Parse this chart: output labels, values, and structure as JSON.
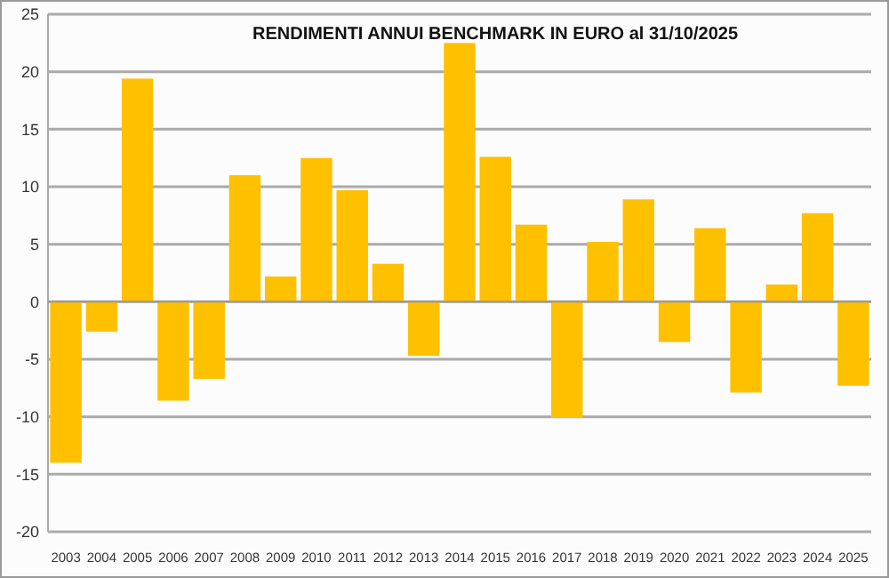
{
  "chart_data": {
    "type": "bar",
    "title": "RENDIMENTI ANNUI BENCHMARK IN EURO al 31/10/2025",
    "categories": [
      "2003",
      "2004",
      "2005",
      "2006",
      "2007",
      "2008",
      "2009",
      "2010",
      "2011",
      "2012",
      "2013",
      "2014",
      "2015",
      "2016",
      "2017",
      "2018",
      "2019",
      "2020",
      "2021",
      "2022",
      "2023",
      "2024",
      "2025"
    ],
    "values": [
      -14.0,
      -2.6,
      19.4,
      -8.6,
      -6.7,
      11.0,
      2.2,
      12.5,
      9.7,
      3.3,
      -4.7,
      22.5,
      12.6,
      6.7,
      -10.1,
      5.2,
      8.9,
      -3.5,
      6.4,
      -7.9,
      1.5,
      7.7,
      -7.3
    ],
    "color": "#ffc000",
    "ylim": [
      -20,
      25
    ],
    "yticks": [
      -20,
      -15,
      -10,
      -5,
      0,
      5,
      10,
      15,
      20,
      25
    ],
    "grid": "y"
  }
}
